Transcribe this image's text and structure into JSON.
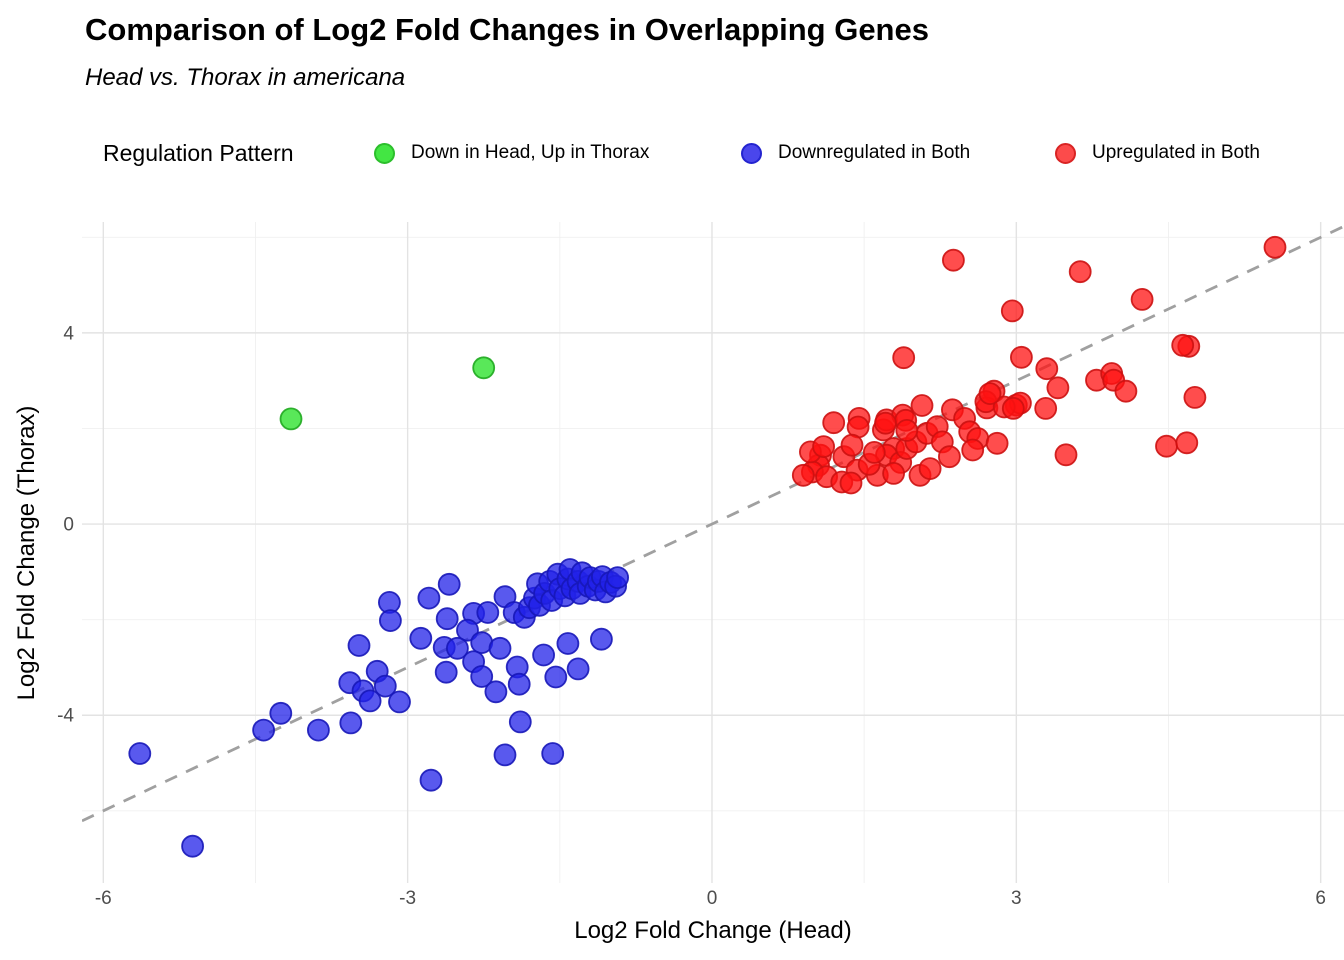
{
  "header": {
    "title": "Comparison of Log2 Fold Changes in Overlapping Genes",
    "subtitle": "Head vs. Thorax in americana"
  },
  "legend": {
    "title": "Regulation Pattern",
    "position": "top"
  },
  "colors": {
    "green_fill": "#43e643",
    "green_stroke": "#2cbf2c",
    "blue_fill": "#4a46ec",
    "blue_stroke": "#2424cf",
    "red_fill": "#fc4b4b",
    "red_stroke": "#d92424",
    "grid_major": "#e3e3e3",
    "grid_minor": "#f0f0f0",
    "identity_line": "#a0a0a0",
    "tick_text": "#4d4d4d"
  },
  "chart_data": {
    "type": "scatter",
    "title": "Comparison of Log2 Fold Changes in Overlapping Genes",
    "subtitle": "Head vs. Thorax in americana",
    "xlabel": "Log2 Fold Change (Head)",
    "ylabel": "Log2 Fold Change (Thorax)",
    "xlim": [
      -6.21,
      6.23
    ],
    "ylim": [
      -7.51,
      6.32
    ],
    "x_major_ticks": [
      -6,
      -3,
      0,
      3,
      6
    ],
    "x_minor_ticks": [
      -4.5,
      -1.5,
      1.5,
      4.5
    ],
    "y_major_ticks": [
      -4,
      0,
      4
    ],
    "y_minor_ticks": [
      -6,
      -2,
      2,
      6
    ],
    "grid": true,
    "legend_position": "top",
    "identity_line": {
      "equation": "y = x",
      "style": "dashed",
      "color": "#a0a0a0"
    },
    "series": [
      {
        "name": "Down in Head, Up in Thorax",
        "color": "#22e022",
        "stroke": "#1fa81f",
        "points": [
          [
            -4.15,
            2.2
          ],
          [
            -2.25,
            3.27
          ]
        ]
      },
      {
        "name": "Downregulated in Both",
        "color": "#2222e8",
        "stroke": "#1717b8",
        "points": [
          [
            -5.64,
            -4.8
          ],
          [
            -5.12,
            -6.74
          ],
          [
            -4.42,
            -4.31
          ],
          [
            -4.25,
            -3.96
          ],
          [
            -3.88,
            -4.31
          ],
          [
            -3.56,
            -4.16
          ],
          [
            -3.18,
            -1.64
          ],
          [
            -3.17,
            -2.02
          ],
          [
            -3.48,
            -2.54
          ],
          [
            -3.3,
            -3.08
          ],
          [
            -3.57,
            -3.32
          ],
          [
            -3.44,
            -3.49
          ],
          [
            -3.22,
            -3.39
          ],
          [
            -3.37,
            -3.7
          ],
          [
            -3.08,
            -3.72
          ],
          [
            -2.77,
            -5.36
          ],
          [
            -2.04,
            -4.83
          ],
          [
            -1.57,
            -4.8
          ],
          [
            -1.89,
            -4.14
          ],
          [
            -2.79,
            -1.55
          ],
          [
            -2.59,
            -1.26
          ],
          [
            -2.87,
            -2.39
          ],
          [
            -2.61,
            -1.98
          ],
          [
            -2.35,
            -1.87
          ],
          [
            -2.21,
            -1.85
          ],
          [
            -2.41,
            -2.22
          ],
          [
            -2.27,
            -2.48
          ],
          [
            -2.64,
            -2.58
          ],
          [
            -2.51,
            -2.6
          ],
          [
            -2.09,
            -2.6
          ],
          [
            -2.62,
            -3.1
          ],
          [
            -2.35,
            -2.88
          ],
          [
            -2.27,
            -3.19
          ],
          [
            -2.13,
            -3.51
          ],
          [
            -1.92,
            -2.99
          ],
          [
            -1.9,
            -3.35
          ],
          [
            -1.66,
            -2.74
          ],
          [
            -1.54,
            -3.2
          ],
          [
            -1.42,
            -2.5
          ],
          [
            -1.32,
            -3.03
          ],
          [
            -1.09,
            -2.41
          ],
          [
            -2.04,
            -1.52
          ],
          [
            -1.95,
            -1.85
          ],
          [
            -1.85,
            -1.95
          ],
          [
            -1.8,
            -1.75
          ],
          [
            -1.75,
            -1.55
          ],
          [
            -1.7,
            -1.7
          ],
          [
            -1.72,
            -1.25
          ],
          [
            -1.65,
            -1.45
          ],
          [
            -1.6,
            -1.2
          ],
          [
            -1.58,
            -1.6
          ],
          [
            -1.52,
            -1.05
          ],
          [
            -1.5,
            -1.35
          ],
          [
            -1.45,
            -1.5
          ],
          [
            -1.42,
            -1.15
          ],
          [
            -1.4,
            -0.95
          ],
          [
            -1.38,
            -1.35
          ],
          [
            -1.32,
            -1.2
          ],
          [
            -1.3,
            -1.45
          ],
          [
            -1.28,
            -1.02
          ],
          [
            -1.22,
            -1.3
          ],
          [
            -1.2,
            -1.12
          ],
          [
            -1.15,
            -1.38
          ],
          [
            -1.12,
            -1.2
          ],
          [
            -1.08,
            -1.1
          ],
          [
            -1.05,
            -1.42
          ],
          [
            -1.0,
            -1.22
          ],
          [
            -0.95,
            -1.3
          ],
          [
            -0.93,
            -1.12
          ]
        ]
      },
      {
        "name": "Upregulated in Both",
        "color": "#ff1111",
        "stroke": "#cc1111",
        "points": [
          [
            2.38,
            5.52
          ],
          [
            3.63,
            5.28
          ],
          [
            4.24,
            4.7
          ],
          [
            5.55,
            5.79
          ],
          [
            2.96,
            4.46
          ],
          [
            4.7,
            3.72
          ],
          [
            1.89,
            3.48
          ],
          [
            3.05,
            3.49
          ],
          [
            3.3,
            3.25
          ],
          [
            3.41,
            2.85
          ],
          [
            3.79,
            3.01
          ],
          [
            3.94,
            3.15
          ],
          [
            3.96,
            3.01
          ],
          [
            4.08,
            2.78
          ],
          [
            4.76,
            2.65
          ],
          [
            4.64,
            3.74
          ],
          [
            2.78,
            2.78
          ],
          [
            2.71,
            2.43
          ],
          [
            3.0,
            2.49
          ],
          [
            3.04,
            2.53
          ],
          [
            3.29,
            2.42
          ],
          [
            4.48,
            1.63
          ],
          [
            4.68,
            1.7
          ],
          [
            3.49,
            1.45
          ],
          [
            1.2,
            2.12
          ],
          [
            1.45,
            2.21
          ],
          [
            1.44,
            2.03
          ],
          [
            1.07,
            1.44
          ],
          [
            1.05,
            1.23
          ],
          [
            0.99,
            1.09
          ],
          [
            1.13,
            0.99
          ],
          [
            1.3,
            1.41
          ],
          [
            1.38,
            1.65
          ],
          [
            1.43,
            1.13
          ],
          [
            1.28,
            0.88
          ],
          [
            1.37,
            0.86
          ],
          [
            1.69,
            1.97
          ],
          [
            1.72,
            2.18
          ],
          [
            1.88,
            2.28
          ],
          [
            1.91,
            2.17
          ],
          [
            1.79,
            1.58
          ],
          [
            1.72,
            1.44
          ],
          [
            1.86,
            1.29
          ],
          [
            1.92,
            1.58
          ],
          [
            2.01,
            1.72
          ],
          [
            2.07,
            2.48
          ],
          [
            2.12,
            1.9
          ],
          [
            2.22,
            2.04
          ],
          [
            2.27,
            1.72
          ],
          [
            2.34,
            1.41
          ],
          [
            2.37,
            2.39
          ],
          [
            2.49,
            2.21
          ],
          [
            2.54,
            1.93
          ],
          [
            2.62,
            1.79
          ],
          [
            2.57,
            1.55
          ],
          [
            2.7,
            2.56
          ],
          [
            2.88,
            2.45
          ],
          [
            2.97,
            2.42
          ],
          [
            2.81,
            1.69
          ],
          [
            1.63,
            1.02
          ],
          [
            1.79,
            1.06
          ],
          [
            2.05,
            1.02
          ],
          [
            2.15,
            1.16
          ],
          [
            0.9,
            1.02
          ],
          [
            0.97,
            1.51
          ],
          [
            1.55,
            1.25
          ],
          [
            1.6,
            1.5
          ],
          [
            1.1,
            1.62
          ],
          [
            1.71,
            2.11
          ],
          [
            1.92,
            1.96
          ],
          [
            2.74,
            2.73
          ]
        ]
      }
    ]
  }
}
